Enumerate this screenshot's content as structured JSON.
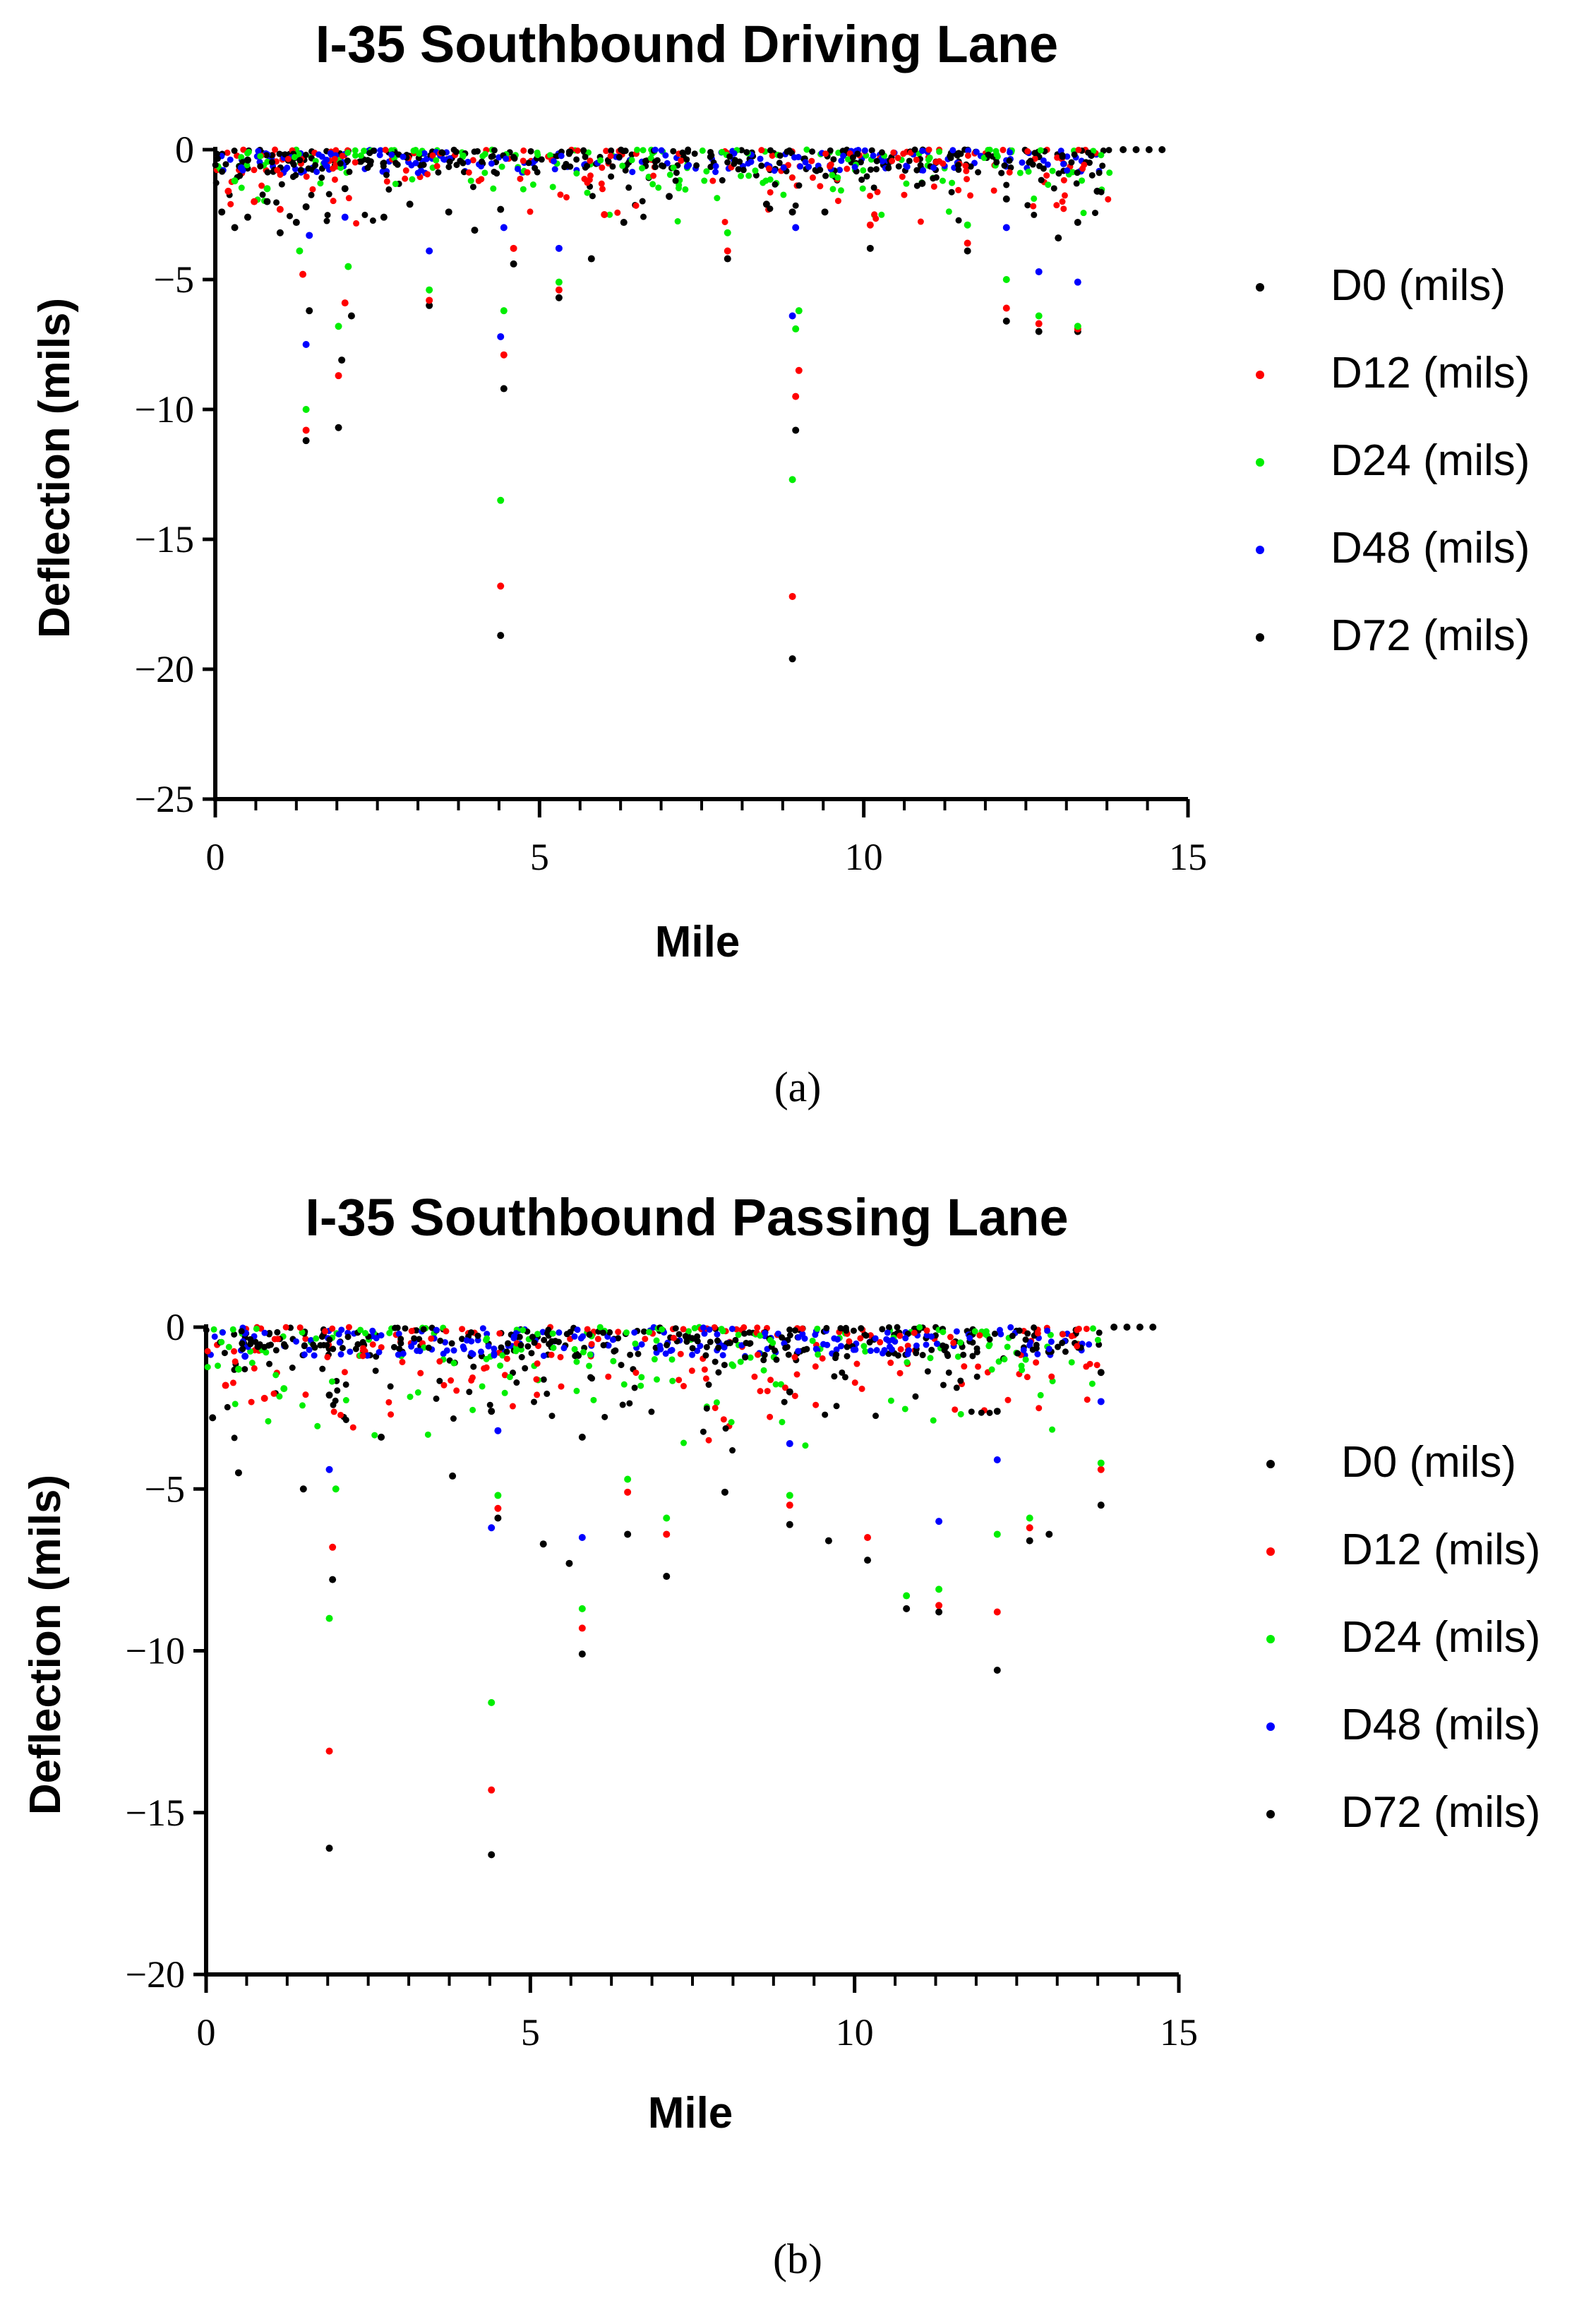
{
  "figure": {
    "captions": [
      "(a)",
      "(b)"
    ]
  },
  "colors": {
    "D0": "#000000",
    "D12": "#ff0000",
    "D24": "#00ee00",
    "D48": "#0000ff",
    "D72": "#000000"
  },
  "chart_data": [
    {
      "type": "scatter",
      "title": "I-35 Southbound Driving Lane",
      "xlabel": "Mile",
      "ylabel": "Deflection (mils)",
      "xlim": [
        0,
        15
      ],
      "ylim": [
        -25,
        0
      ],
      "xticks": [
        0,
        5,
        10,
        15
      ],
      "yticks": [
        0,
        -5,
        -10,
        -15,
        -20,
        -25
      ],
      "ytick_labels": [
        "0",
        "−5",
        "−10",
        "−15",
        "−20",
        "−25"
      ],
      "legend": [
        "D0 (mils)",
        "D12 (mils)",
        "D24 (mils)",
        "D48 (mils)",
        "D72 (mils)"
      ],
      "legend_position": "right",
      "series": [
        {
          "name": "D0 (mils)",
          "points": [
            [
              0.1,
              -2.4
            ],
            [
              0.3,
              -3.0
            ],
            [
              0.5,
              -2.6
            ],
            [
              0.8,
              -2.0
            ],
            [
              1.0,
              -3.2
            ],
            [
              1.25,
              -2.8
            ],
            [
              1.4,
              -11.2
            ],
            [
              1.45,
              -6.2
            ],
            [
              1.9,
              -10.7
            ],
            [
              1.95,
              -8.1
            ],
            [
              2.1,
              -6.4
            ],
            [
              2.6,
              -2.6
            ],
            [
              3.0,
              -2.1
            ],
            [
              3.3,
              -6.0
            ],
            [
              3.6,
              -2.4
            ],
            [
              4.0,
              -3.1
            ],
            [
              4.4,
              -18.7
            ],
            [
              4.45,
              -9.2
            ],
            [
              4.6,
              -4.4
            ],
            [
              5.3,
              -5.7
            ],
            [
              5.8,
              -4.2
            ],
            [
              6.3,
              -2.8
            ],
            [
              7.0,
              -1.8
            ],
            [
              7.9,
              -4.2
            ],
            [
              8.5,
              -2.1
            ],
            [
              8.9,
              -19.6
            ],
            [
              8.95,
              -10.8
            ],
            [
              9.4,
              -2.4
            ],
            [
              10.1,
              -3.8
            ],
            [
              10.9,
              -1.3
            ],
            [
              11.6,
              -3.9
            ],
            [
              12.2,
              -6.6
            ],
            [
              12.7,
              -7.0
            ],
            [
              13.0,
              -3.4
            ],
            [
              13.3,
              -7.0
            ],
            [
              13.6,
              -1.6
            ],
            [
              14.0,
              0
            ],
            [
              14.2,
              0
            ],
            [
              14.4,
              0
            ],
            [
              14.6,
              0
            ]
          ]
        },
        {
          "name": "D12 (mils)",
          "points": [
            [
              0.2,
              -1.6
            ],
            [
              0.6,
              -2.0
            ],
            [
              1.0,
              -2.3
            ],
            [
              1.35,
              -4.8
            ],
            [
              1.4,
              -10.8
            ],
            [
              1.9,
              -8.7
            ],
            [
              2.0,
              -5.9
            ],
            [
              3.3,
              -5.8
            ],
            [
              4.4,
              -16.8
            ],
            [
              4.45,
              -7.9
            ],
            [
              4.6,
              -3.8
            ],
            [
              5.3,
              -5.4
            ],
            [
              6.0,
              -2.5
            ],
            [
              7.9,
              -3.9
            ],
            [
              8.9,
              -17.2
            ],
            [
              8.95,
              -9.5
            ],
            [
              9.0,
              -8.5
            ],
            [
              10.1,
              -2.9
            ],
            [
              11.6,
              -3.6
            ],
            [
              12.2,
              -6.1
            ],
            [
              12.7,
              -6.7
            ],
            [
              13.3,
              -6.9
            ]
          ]
        },
        {
          "name": "D24 (mils)",
          "points": [
            [
              0.3,
              -1.2
            ],
            [
              0.8,
              -1.5
            ],
            [
              1.3,
              -3.9
            ],
            [
              1.4,
              -10.0
            ],
            [
              1.9,
              -6.8
            ],
            [
              2.05,
              -4.5
            ],
            [
              3.3,
              -5.4
            ],
            [
              4.4,
              -13.5
            ],
            [
              4.45,
              -6.2
            ],
            [
              5.3,
              -5.1
            ],
            [
              7.9,
              -3.2
            ],
            [
              8.9,
              -12.7
            ],
            [
              8.95,
              -6.9
            ],
            [
              9.0,
              -6.2
            ],
            [
              11.6,
              -2.9
            ],
            [
              12.2,
              -5.0
            ],
            [
              12.7,
              -6.4
            ],
            [
              13.3,
              -6.8
            ]
          ]
        },
        {
          "name": "D48 (mils)",
          "points": [
            [
              0.4,
              -0.7
            ],
            [
              1.4,
              -7.5
            ],
            [
              1.45,
              -3.3
            ],
            [
              2.0,
              -2.6
            ],
            [
              3.3,
              -3.9
            ],
            [
              4.4,
              -7.2
            ],
            [
              4.45,
              -3.0
            ],
            [
              5.3,
              -3.8
            ],
            [
              8.9,
              -6.4
            ],
            [
              8.95,
              -3.0
            ],
            [
              12.2,
              -3.0
            ],
            [
              12.7,
              -4.7
            ],
            [
              13.3,
              -5.1
            ]
          ]
        },
        {
          "name": "D72 (mils)",
          "points": [
            [
              0.5,
              -0.4
            ],
            [
              1.4,
              -2.2
            ],
            [
              2.0,
              -1.5
            ],
            [
              4.4,
              -2.3
            ],
            [
              8.9,
              -2.4
            ],
            [
              12.2,
              -1.9
            ],
            [
              13.3,
              -2.8
            ]
          ]
        }
      ]
    },
    {
      "type": "scatter",
      "title": "I-35 Southbound Passing Lane",
      "xlabel": "Mile",
      "ylabel": "Deflection (mils)",
      "xlim": [
        0,
        15
      ],
      "ylim": [
        -20,
        0
      ],
      "xticks": [
        0,
        5,
        10,
        15
      ],
      "yticks": [
        0,
        -5,
        -10,
        -15,
        -20
      ],
      "ytick_labels": [
        "0",
        "−5",
        "−10",
        "−15",
        "−20"
      ],
      "legend": [
        "D0 (mils)",
        "D12 (mils)",
        "D24 (mils)",
        "D48 (mils)",
        "D72 (mils)"
      ],
      "legend_position": "right",
      "series": [
        {
          "name": "D0 (mils)",
          "points": [
            [
              0.1,
              -2.8
            ],
            [
              0.5,
              -4.5
            ],
            [
              1.5,
              -5.0
            ],
            [
              1.9,
              -16.1
            ],
            [
              1.95,
              -7.8
            ],
            [
              2.7,
              -3.4
            ],
            [
              3.8,
              -4.6
            ],
            [
              4.4,
              -16.3
            ],
            [
              4.5,
              -5.9
            ],
            [
              5.2,
              -6.7
            ],
            [
              5.6,
              -7.3
            ],
            [
              5.8,
              -10.1
            ],
            [
              6.5,
              -6.4
            ],
            [
              7.1,
              -7.7
            ],
            [
              8.0,
              -5.1
            ],
            [
              9.0,
              -6.1
            ],
            [
              9.6,
              -6.6
            ],
            [
              10.2,
              -7.2
            ],
            [
              10.8,
              -8.7
            ],
            [
              11.3,
              -8.8
            ],
            [
              12.2,
              -10.6
            ],
            [
              12.7,
              -6.6
            ],
            [
              13.0,
              -6.4
            ],
            [
              13.8,
              -5.5
            ],
            [
              14.0,
              0
            ],
            [
              14.2,
              0
            ],
            [
              14.4,
              0
            ],
            [
              14.6,
              0
            ]
          ]
        },
        {
          "name": "D12 (mils)",
          "points": [
            [
              0.3,
              -1.8
            ],
            [
              0.9,
              -2.2
            ],
            [
              1.9,
              -13.1
            ],
            [
              1.95,
              -6.8
            ],
            [
              4.4,
              -14.3
            ],
            [
              4.5,
              -5.6
            ],
            [
              5.8,
              -9.3
            ],
            [
              6.5,
              -5.1
            ],
            [
              7.1,
              -6.4
            ],
            [
              9.0,
              -5.5
            ],
            [
              10.2,
              -6.5
            ],
            [
              11.3,
              -8.6
            ],
            [
              12.2,
              -8.8
            ],
            [
              12.7,
              -6.2
            ],
            [
              13.8,
              -4.4
            ]
          ]
        },
        {
          "name": "D24 (mils)",
          "points": [
            [
              0.5,
              -1.3
            ],
            [
              1.2,
              -1.9
            ],
            [
              1.9,
              -9.0
            ],
            [
              2.0,
              -5.0
            ],
            [
              4.4,
              -11.6
            ],
            [
              4.5,
              -5.2
            ],
            [
              5.8,
              -8.7
            ],
            [
              6.5,
              -4.7
            ],
            [
              7.1,
              -5.9
            ],
            [
              9.0,
              -5.2
            ],
            [
              10.8,
              -8.3
            ],
            [
              11.3,
              -8.1
            ],
            [
              12.2,
              -6.4
            ],
            [
              12.7,
              -5.9
            ],
            [
              13.8,
              -4.2
            ]
          ]
        },
        {
          "name": "D48 (mils)",
          "points": [
            [
              0.6,
              -0.9
            ],
            [
              1.9,
              -4.4
            ],
            [
              4.4,
              -6.2
            ],
            [
              4.5,
              -3.2
            ],
            [
              5.8,
              -6.5
            ],
            [
              9.0,
              -3.6
            ],
            [
              11.3,
              -6.0
            ],
            [
              12.2,
              -4.1
            ],
            [
              13.8,
              -2.3
            ]
          ]
        },
        {
          "name": "D72 (mils)",
          "points": [
            [
              0.8,
              -0.6
            ],
            [
              1.9,
              -2.1
            ],
            [
              4.4,
              -2.6
            ],
            [
              5.8,
              -3.4
            ],
            [
              9.0,
              -2.0
            ],
            [
              12.2,
              -2.6
            ],
            [
              13.8,
              -1.4
            ]
          ]
        }
      ]
    }
  ]
}
